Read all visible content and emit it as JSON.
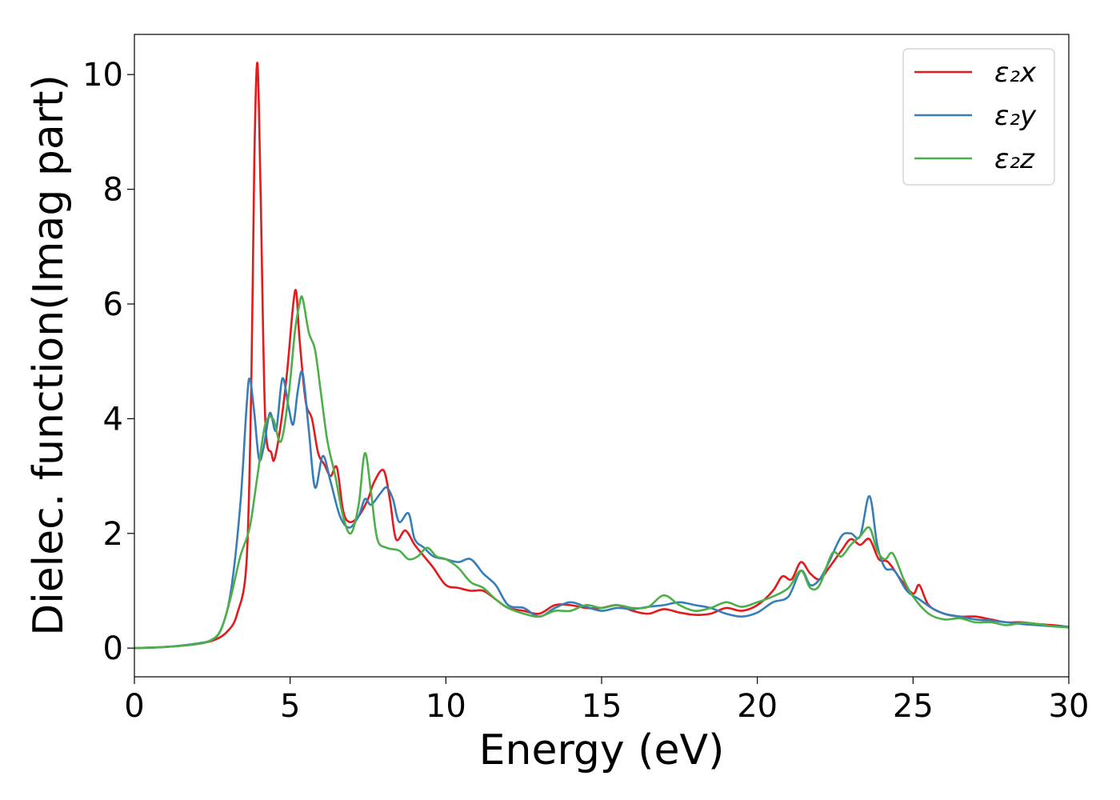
{
  "chart_data": {
    "type": "line",
    "title": "",
    "xlabel": "Energy (eV)",
    "ylabel": "Dielec. function(Imag part)",
    "xlim": [
      0,
      30
    ],
    "ylim": [
      -0.5,
      10.7
    ],
    "xticks": [
      0,
      5,
      10,
      15,
      20,
      25,
      30
    ],
    "yticks": [
      0,
      2,
      4,
      6,
      8,
      10
    ],
    "grid": false,
    "legend_position": "top-right",
    "series": [
      {
        "name": "ε₂x",
        "color": "#e41a1c",
        "points": [
          [
            0,
            0.0
          ],
          [
            1,
            0.02
          ],
          [
            2,
            0.07
          ],
          [
            2.6,
            0.15
          ],
          [
            3.0,
            0.3
          ],
          [
            3.3,
            0.6
          ],
          [
            3.6,
            1.5
          ],
          [
            3.75,
            4.5
          ],
          [
            3.85,
            8.5
          ],
          [
            3.95,
            10.2
          ],
          [
            4.05,
            8.0
          ],
          [
            4.2,
            4.0
          ],
          [
            4.4,
            3.4
          ],
          [
            4.5,
            3.3
          ],
          [
            4.7,
            3.9
          ],
          [
            4.9,
            4.8
          ],
          [
            5.1,
            6.0
          ],
          [
            5.2,
            6.2
          ],
          [
            5.3,
            5.4
          ],
          [
            5.5,
            4.3
          ],
          [
            5.7,
            4.0
          ],
          [
            5.9,
            3.4
          ],
          [
            6.1,
            3.2
          ],
          [
            6.3,
            3.0
          ],
          [
            6.5,
            3.15
          ],
          [
            6.7,
            2.4
          ],
          [
            6.9,
            2.2
          ],
          [
            7.2,
            2.3
          ],
          [
            7.5,
            2.6
          ],
          [
            7.7,
            2.9
          ],
          [
            8.0,
            3.1
          ],
          [
            8.2,
            2.6
          ],
          [
            8.4,
            1.9
          ],
          [
            8.7,
            2.05
          ],
          [
            9.0,
            1.8
          ],
          [
            9.3,
            1.6
          ],
          [
            9.6,
            1.4
          ],
          [
            10.0,
            1.1
          ],
          [
            10.4,
            1.05
          ],
          [
            10.8,
            1.0
          ],
          [
            11.2,
            1.0
          ],
          [
            11.6,
            0.85
          ],
          [
            12.0,
            0.7
          ],
          [
            12.5,
            0.65
          ],
          [
            13.0,
            0.6
          ],
          [
            13.5,
            0.75
          ],
          [
            14.0,
            0.75
          ],
          [
            14.5,
            0.7
          ],
          [
            15.0,
            0.7
          ],
          [
            15.5,
            0.75
          ],
          [
            16.0,
            0.65
          ],
          [
            16.5,
            0.6
          ],
          [
            17.0,
            0.68
          ],
          [
            17.5,
            0.62
          ],
          [
            18.0,
            0.58
          ],
          [
            18.5,
            0.6
          ],
          [
            19.0,
            0.7
          ],
          [
            19.5,
            0.65
          ],
          [
            20.0,
            0.75
          ],
          [
            20.5,
            1.0
          ],
          [
            20.8,
            1.25
          ],
          [
            21.1,
            1.2
          ],
          [
            21.4,
            1.5
          ],
          [
            21.7,
            1.3
          ],
          [
            22.0,
            1.2
          ],
          [
            22.3,
            1.4
          ],
          [
            22.7,
            1.7
          ],
          [
            23.0,
            1.9
          ],
          [
            23.3,
            1.8
          ],
          [
            23.6,
            1.9
          ],
          [
            23.9,
            1.55
          ],
          [
            24.2,
            1.5
          ],
          [
            24.6,
            1.2
          ],
          [
            25.0,
            0.95
          ],
          [
            25.2,
            1.1
          ],
          [
            25.5,
            0.75
          ],
          [
            26.0,
            0.6
          ],
          [
            26.5,
            0.55
          ],
          [
            27.0,
            0.55
          ],
          [
            27.5,
            0.5
          ],
          [
            28.0,
            0.45
          ],
          [
            28.5,
            0.45
          ],
          [
            29.0,
            0.42
          ],
          [
            29.5,
            0.4
          ],
          [
            30.0,
            0.37
          ]
        ]
      },
      {
        "name": "ε₂y",
        "color": "#377eb8",
        "points": [
          [
            0,
            0.0
          ],
          [
            1,
            0.02
          ],
          [
            2,
            0.08
          ],
          [
            2.5,
            0.15
          ],
          [
            2.8,
            0.35
          ],
          [
            3.1,
            1.0
          ],
          [
            3.4,
            2.5
          ],
          [
            3.6,
            4.2
          ],
          [
            3.7,
            4.7
          ],
          [
            3.85,
            4.1
          ],
          [
            4.0,
            3.3
          ],
          [
            4.15,
            3.5
          ],
          [
            4.35,
            4.1
          ],
          [
            4.55,
            3.8
          ],
          [
            4.75,
            4.7
          ],
          [
            4.95,
            4.2
          ],
          [
            5.1,
            3.9
          ],
          [
            5.25,
            4.5
          ],
          [
            5.4,
            4.8
          ],
          [
            5.6,
            3.8
          ],
          [
            5.8,
            2.8
          ],
          [
            6.05,
            3.35
          ],
          [
            6.3,
            2.9
          ],
          [
            6.6,
            2.3
          ],
          [
            6.9,
            2.1
          ],
          [
            7.2,
            2.3
          ],
          [
            7.4,
            2.6
          ],
          [
            7.6,
            2.5
          ],
          [
            7.9,
            2.7
          ],
          [
            8.1,
            2.8
          ],
          [
            8.3,
            2.6
          ],
          [
            8.5,
            2.2
          ],
          [
            8.8,
            2.35
          ],
          [
            9.0,
            1.9
          ],
          [
            9.3,
            1.75
          ],
          [
            9.6,
            1.6
          ],
          [
            10.0,
            1.55
          ],
          [
            10.4,
            1.5
          ],
          [
            10.8,
            1.55
          ],
          [
            11.2,
            1.3
          ],
          [
            11.6,
            1.1
          ],
          [
            12.0,
            0.75
          ],
          [
            12.5,
            0.7
          ],
          [
            13.0,
            0.55
          ],
          [
            13.5,
            0.7
          ],
          [
            14.0,
            0.8
          ],
          [
            14.5,
            0.72
          ],
          [
            15.0,
            0.65
          ],
          [
            15.5,
            0.7
          ],
          [
            16.0,
            0.68
          ],
          [
            16.5,
            0.72
          ],
          [
            17.0,
            0.75
          ],
          [
            17.5,
            0.8
          ],
          [
            18.0,
            0.75
          ],
          [
            18.5,
            0.7
          ],
          [
            19.0,
            0.6
          ],
          [
            19.5,
            0.55
          ],
          [
            20.0,
            0.62
          ],
          [
            20.5,
            0.8
          ],
          [
            21.0,
            0.9
          ],
          [
            21.4,
            1.35
          ],
          [
            21.7,
            1.1
          ],
          [
            22.0,
            1.2
          ],
          [
            22.3,
            1.5
          ],
          [
            22.7,
            1.95
          ],
          [
            23.0,
            2.0
          ],
          [
            23.3,
            1.95
          ],
          [
            23.6,
            2.65
          ],
          [
            23.85,
            1.8
          ],
          [
            24.1,
            1.4
          ],
          [
            24.4,
            1.35
          ],
          [
            24.8,
            1.0
          ],
          [
            25.2,
            0.85
          ],
          [
            25.6,
            0.7
          ],
          [
            26.0,
            0.6
          ],
          [
            26.5,
            0.55
          ],
          [
            27.0,
            0.5
          ],
          [
            27.5,
            0.48
          ],
          [
            28.0,
            0.45
          ],
          [
            28.5,
            0.42
          ],
          [
            29.0,
            0.4
          ],
          [
            29.5,
            0.38
          ],
          [
            30.0,
            0.37
          ]
        ]
      },
      {
        "name": "ε₂z",
        "color": "#4daf4a",
        "points": [
          [
            0,
            0.0
          ],
          [
            1,
            0.02
          ],
          [
            2,
            0.07
          ],
          [
            2.5,
            0.15
          ],
          [
            2.8,
            0.35
          ],
          [
            3.1,
            0.9
          ],
          [
            3.4,
            1.6
          ],
          [
            3.7,
            2.1
          ],
          [
            3.95,
            3.0
          ],
          [
            4.2,
            3.9
          ],
          [
            4.45,
            4.0
          ],
          [
            4.7,
            3.6
          ],
          [
            4.95,
            4.4
          ],
          [
            5.15,
            5.5
          ],
          [
            5.3,
            6.0
          ],
          [
            5.4,
            6.1
          ],
          [
            5.6,
            5.5
          ],
          [
            5.8,
            5.2
          ],
          [
            6.0,
            4.4
          ],
          [
            6.2,
            3.6
          ],
          [
            6.45,
            3.0
          ],
          [
            6.7,
            2.3
          ],
          [
            6.95,
            2.0
          ],
          [
            7.2,
            2.5
          ],
          [
            7.4,
            3.4
          ],
          [
            7.6,
            2.7
          ],
          [
            7.8,
            1.9
          ],
          [
            8.1,
            1.75
          ],
          [
            8.5,
            1.7
          ],
          [
            8.8,
            1.55
          ],
          [
            9.1,
            1.6
          ],
          [
            9.4,
            1.75
          ],
          [
            9.7,
            1.6
          ],
          [
            10.0,
            1.55
          ],
          [
            10.4,
            1.4
          ],
          [
            10.8,
            1.15
          ],
          [
            11.2,
            1.05
          ],
          [
            11.6,
            0.85
          ],
          [
            12.0,
            0.7
          ],
          [
            12.5,
            0.6
          ],
          [
            13.0,
            0.55
          ],
          [
            13.5,
            0.65
          ],
          [
            14.0,
            0.65
          ],
          [
            14.5,
            0.75
          ],
          [
            15.0,
            0.7
          ],
          [
            15.5,
            0.75
          ],
          [
            16.0,
            0.7
          ],
          [
            16.5,
            0.72
          ],
          [
            17.0,
            0.92
          ],
          [
            17.5,
            0.75
          ],
          [
            18.0,
            0.65
          ],
          [
            18.5,
            0.7
          ],
          [
            19.0,
            0.8
          ],
          [
            19.5,
            0.72
          ],
          [
            20.0,
            0.8
          ],
          [
            20.5,
            0.9
          ],
          [
            21.0,
            1.05
          ],
          [
            21.4,
            1.35
          ],
          [
            21.7,
            1.05
          ],
          [
            22.0,
            1.1
          ],
          [
            22.4,
            1.65
          ],
          [
            22.7,
            1.6
          ],
          [
            23.0,
            1.8
          ],
          [
            23.3,
            1.95
          ],
          [
            23.6,
            2.1
          ],
          [
            23.85,
            1.7
          ],
          [
            24.1,
            1.55
          ],
          [
            24.35,
            1.65
          ],
          [
            24.7,
            1.2
          ],
          [
            25.0,
            0.9
          ],
          [
            25.5,
            0.6
          ],
          [
            26.0,
            0.5
          ],
          [
            26.5,
            0.52
          ],
          [
            27.0,
            0.45
          ],
          [
            27.5,
            0.45
          ],
          [
            28.0,
            0.4
          ],
          [
            28.5,
            0.44
          ],
          [
            29.0,
            0.42
          ],
          [
            29.5,
            0.38
          ],
          [
            30.0,
            0.36
          ]
        ]
      }
    ]
  }
}
